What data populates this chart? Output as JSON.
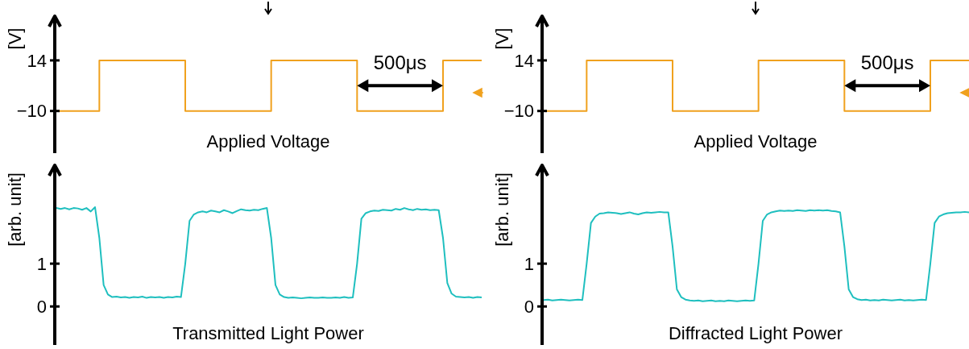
{
  "chart_data": [
    {
      "type": "step",
      "title": "Applied Voltage",
      "ylabel": "[V]",
      "ylim": [
        -30,
        35
      ],
      "yticks": [
        -10,
        14
      ],
      "tick_labels": "y",
      "color": "#f0a11e",
      "annotations": [
        "500μs"
      ],
      "categories": [
        null,
        null,
        null,
        null,
        null,
        null,
        null,
        null,
        null,
        null,
        null,
        null,
        null,
        null,
        null,
        null,
        null,
        null,
        null,
        null,
        null,
        null,
        null,
        null,
        null,
        null,
        null,
        null,
        null,
        null,
        null,
        null,
        null,
        null,
        null,
        null,
        null,
        null,
        null,
        null,
        null,
        null,
        null,
        null,
        null,
        null,
        null,
        null,
        null,
        null,
        null,
        null,
        null,
        null,
        null,
        null,
        null,
        null,
        null,
        null,
        null,
        null,
        null,
        null,
        null,
        null,
        null,
        null,
        null,
        null,
        null,
        null,
        null,
        null,
        null,
        null,
        null,
        null,
        null,
        null,
        null,
        null,
        null,
        null,
        null,
        null,
        null,
        null,
        null,
        null,
        null,
        null,
        null,
        null,
        null,
        null,
        null,
        null,
        null,
        null
      ],
      "values": [
        -10,
        -10,
        -10,
        -10,
        -10,
        -10,
        -10,
        -10,
        -10,
        -10,
        14,
        14,
        14,
        14,
        14,
        14,
        14,
        14,
        14,
        14,
        14,
        14,
        14,
        14,
        14,
        14,
        14,
        14,
        14,
        14,
        -10,
        -10,
        -10,
        -10,
        -10,
        -10,
        -10,
        -10,
        -10,
        -10,
        -10,
        -10,
        -10,
        -10,
        -10,
        -10,
        -10,
        -10,
        -10,
        -10,
        14,
        14,
        14,
        14,
        14,
        14,
        14,
        14,
        14,
        14,
        14,
        14,
        14,
        14,
        14,
        14,
        14,
        14,
        14,
        14,
        -10,
        -10,
        -10,
        -10,
        -10,
        -10,
        -10,
        -10,
        -10,
        -10,
        -10,
        -10,
        -10,
        -10,
        -10,
        -10,
        -10,
        -10,
        -10,
        -10,
        14,
        14,
        14,
        14,
        14,
        14,
        14,
        14,
        14,
        14
      ]
    },
    {
      "type": "line",
      "title": "Transmitted Light Power",
      "ylabel": "[arb. unit]",
      "ylim": [
        -0.9,
        3.3
      ],
      "yticks": [
        0,
        1
      ],
      "tick_labels": "y",
      "color": "#1fbfbf",
      "categories": [
        null,
        null,
        null,
        null,
        null,
        null,
        null,
        null,
        null,
        null,
        null,
        null,
        null,
        null,
        null,
        null,
        null,
        null,
        null,
        null,
        null,
        null,
        null,
        null,
        null,
        null,
        null,
        null,
        null,
        null,
        null,
        null,
        null,
        null,
        null,
        null,
        null,
        null,
        null,
        null,
        null,
        null,
        null,
        null,
        null,
        null,
        null,
        null,
        null,
        null,
        null,
        null,
        null,
        null,
        null,
        null,
        null,
        null,
        null,
        null,
        null,
        null,
        null,
        null,
        null,
        null,
        null,
        null,
        null,
        null,
        null,
        null,
        null,
        null,
        null,
        null,
        null,
        null,
        null,
        null,
        null,
        null,
        null,
        null,
        null,
        null,
        null,
        null,
        null,
        null,
        null,
        null,
        null,
        null,
        null,
        null,
        null,
        null,
        null,
        null
      ],
      "values": [
        2.3,
        2.28,
        2.3,
        2.27,
        2.3,
        2.29,
        2.26,
        2.3,
        2.22,
        2.32,
        1.6,
        0.5,
        0.28,
        0.22,
        0.23,
        0.21,
        0.22,
        0.2,
        0.22,
        0.21,
        0.23,
        0.2,
        0.22,
        0.21,
        0.22,
        0.2,
        0.22,
        0.21,
        0.23,
        0.22,
        1.0,
        2.0,
        2.15,
        2.2,
        2.22,
        2.2,
        2.24,
        2.22,
        2.2,
        2.25,
        2.22,
        2.18,
        2.23,
        2.27,
        2.25,
        2.24,
        2.26,
        2.25,
        2.28,
        2.3,
        1.6,
        0.5,
        0.28,
        0.22,
        0.2,
        0.21,
        0.2,
        0.19,
        0.2,
        0.21,
        0.2,
        0.2,
        0.21,
        0.2,
        0.2,
        0.21,
        0.2,
        0.22,
        0.2,
        0.21,
        1.0,
        2.05,
        2.18,
        2.22,
        2.24,
        2.23,
        2.26,
        2.25,
        2.24,
        2.28,
        2.26,
        2.3,
        2.27,
        2.25,
        2.28,
        2.26,
        2.27,
        2.25,
        2.26,
        2.25,
        1.6,
        0.55,
        0.3,
        0.23,
        0.22,
        0.21,
        0.22,
        0.2,
        0.22,
        0.21
      ]
    },
    {
      "type": "step",
      "title": "Applied Voltage",
      "ylabel": "[V]",
      "ylim": [
        -30,
        35
      ],
      "yticks": [
        -10,
        14
      ],
      "tick_labels": "y",
      "color": "#f0a11e",
      "annotations": [
        "500μs"
      ],
      "categories": [
        null,
        null,
        null,
        null,
        null,
        null,
        null,
        null,
        null,
        null,
        null,
        null,
        null,
        null,
        null,
        null,
        null,
        null,
        null,
        null,
        null,
        null,
        null,
        null,
        null,
        null,
        null,
        null,
        null,
        null,
        null,
        null,
        null,
        null,
        null,
        null,
        null,
        null,
        null,
        null,
        null,
        null,
        null,
        null,
        null,
        null,
        null,
        null,
        null,
        null,
        null,
        null,
        null,
        null,
        null,
        null,
        null,
        null,
        null,
        null,
        null,
        null,
        null,
        null,
        null,
        null,
        null,
        null,
        null,
        null,
        null,
        null,
        null,
        null,
        null,
        null,
        null,
        null,
        null,
        null,
        null,
        null,
        null,
        null,
        null,
        null,
        null,
        null,
        null,
        null,
        null,
        null,
        null,
        null,
        null,
        null,
        null,
        null,
        null,
        null
      ],
      "values": [
        -10,
        -10,
        -10,
        -10,
        -10,
        -10,
        -10,
        -10,
        -10,
        -10,
        14,
        14,
        14,
        14,
        14,
        14,
        14,
        14,
        14,
        14,
        14,
        14,
        14,
        14,
        14,
        14,
        14,
        14,
        14,
        14,
        -10,
        -10,
        -10,
        -10,
        -10,
        -10,
        -10,
        -10,
        -10,
        -10,
        -10,
        -10,
        -10,
        -10,
        -10,
        -10,
        -10,
        -10,
        -10,
        -10,
        14,
        14,
        14,
        14,
        14,
        14,
        14,
        14,
        14,
        14,
        14,
        14,
        14,
        14,
        14,
        14,
        14,
        14,
        14,
        14,
        -10,
        -10,
        -10,
        -10,
        -10,
        -10,
        -10,
        -10,
        -10,
        -10,
        -10,
        -10,
        -10,
        -10,
        -10,
        -10,
        -10,
        -10,
        -10,
        -10,
        14,
        14,
        14,
        14,
        14,
        14,
        14,
        14,
        14,
        14
      ]
    },
    {
      "type": "line",
      "title": "Diffracted Light Power",
      "ylabel": "[arb. unit]",
      "ylim": [
        -0.9,
        3.3
      ],
      "yticks": [
        0,
        1
      ],
      "tick_labels": "y",
      "color": "#1fbfbf",
      "categories": [
        null,
        null,
        null,
        null,
        null,
        null,
        null,
        null,
        null,
        null,
        null,
        null,
        null,
        null,
        null,
        null,
        null,
        null,
        null,
        null,
        null,
        null,
        null,
        null,
        null,
        null,
        null,
        null,
        null,
        null,
        null,
        null,
        null,
        null,
        null,
        null,
        null,
        null,
        null,
        null,
        null,
        null,
        null,
        null,
        null,
        null,
        null,
        null,
        null,
        null,
        null,
        null,
        null,
        null,
        null,
        null,
        null,
        null,
        null,
        null,
        null,
        null,
        null,
        null,
        null,
        null,
        null,
        null,
        null,
        null,
        null,
        null,
        null,
        null,
        null,
        null,
        null,
        null,
        null,
        null,
        null,
        null,
        null,
        null,
        null,
        null,
        null,
        null,
        null,
        null,
        null,
        null,
        null,
        null,
        null,
        null,
        null,
        null,
        null,
        null
      ],
      "values": [
        0.15,
        0.16,
        0.14,
        0.15,
        0.16,
        0.15,
        0.14,
        0.15,
        0.16,
        0.15,
        1.0,
        1.95,
        2.1,
        2.17,
        2.18,
        2.2,
        2.19,
        2.18,
        2.16,
        2.18,
        2.2,
        2.17,
        2.15,
        2.18,
        2.2,
        2.19,
        2.2,
        2.21,
        2.2,
        2.2,
        1.4,
        0.4,
        0.22,
        0.16,
        0.14,
        0.13,
        0.14,
        0.12,
        0.13,
        0.14,
        0.12,
        0.13,
        0.12,
        0.14,
        0.13,
        0.12,
        0.13,
        0.14,
        0.13,
        0.14,
        1.0,
        2.0,
        2.15,
        2.2,
        2.22,
        2.24,
        2.23,
        2.24,
        2.23,
        2.25,
        2.24,
        2.23,
        2.25,
        2.24,
        2.25,
        2.24,
        2.25,
        2.23,
        2.22,
        2.2,
        1.4,
        0.4,
        0.22,
        0.17,
        0.15,
        0.16,
        0.14,
        0.15,
        0.14,
        0.16,
        0.15,
        0.14,
        0.15,
        0.16,
        0.14,
        0.15,
        0.14,
        0.15,
        0.16,
        0.15,
        1.0,
        1.95,
        2.1,
        2.15,
        2.18,
        2.19,
        2.2,
        2.2,
        2.21,
        2.2
      ]
    }
  ]
}
